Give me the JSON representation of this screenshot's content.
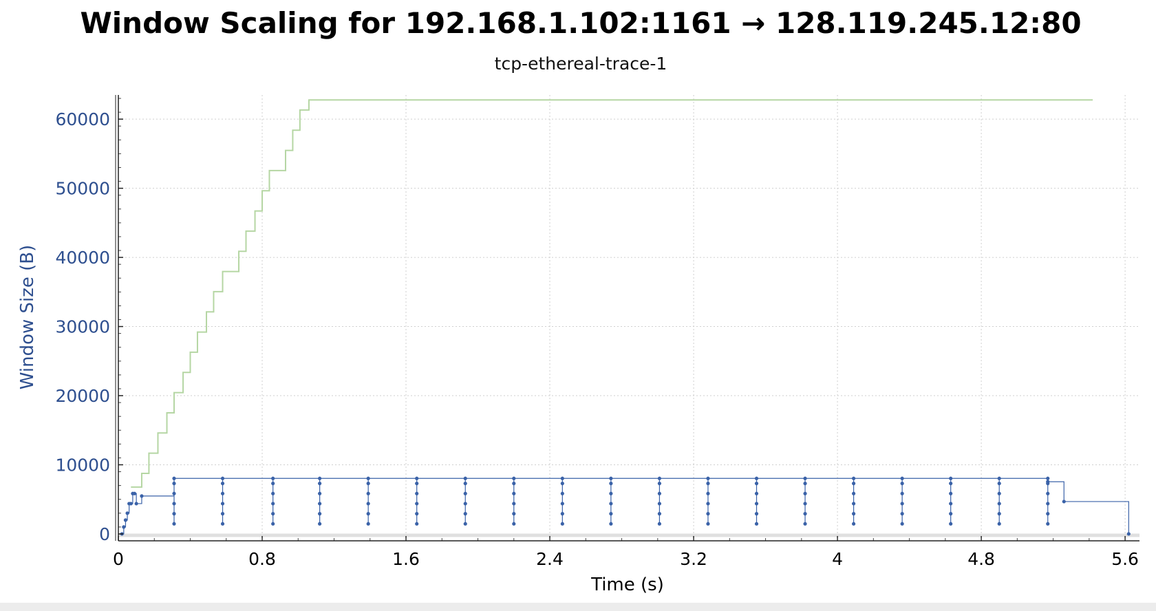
{
  "chart_data": {
    "type": "line",
    "title": "Window Scaling for 192.168.1.102:1161 → 128.119.245.12:80",
    "subtitle": "tcp-ethereal-trace-1",
    "xlabel": "Time (s)",
    "ylabel": "Window Size (B)",
    "xlim": [
      0,
      5.68
    ],
    "ylim": [
      -1000,
      63500
    ],
    "x_ticks": [
      "0",
      "0.8",
      "1.6",
      "2.4",
      "3.2",
      "4",
      "4.8",
      "5.6"
    ],
    "y_ticks": [
      "0",
      "10000",
      "20000",
      "30000",
      "40000",
      "50000",
      "60000"
    ],
    "grid": true,
    "colors": {
      "receive_window": "#b5d6a3",
      "bytes_in_flight": "#3a62a8",
      "axis_labels": "#2e4f8f"
    },
    "series": [
      {
        "style": "step",
        "x": [
          0.07,
          0.13,
          0.17,
          0.22,
          0.27,
          0.31,
          0.36,
          0.4,
          0.44,
          0.49,
          0.53,
          0.58,
          0.62,
          0.67,
          0.71,
          0.76,
          0.8,
          0.84,
          0.89,
          0.93,
          0.97,
          1.01,
          1.06,
          5.42
        ],
        "y": [
          6780,
          8760,
          11680,
          14600,
          17520,
          20440,
          23360,
          26280,
          29200,
          32120,
          35040,
          37960,
          37960,
          40880,
          43800,
          46720,
          49640,
          52560,
          52560,
          55480,
          58400,
          61320,
          62780,
          62780
        ]
      },
      {
        "style": "step-with-markers",
        "x": [
          0.02,
          0.03,
          0.04,
          0.05,
          0.06,
          0.07,
          0.08,
          0.09,
          0.1,
          0.13,
          0.31,
          0.31,
          0.31,
          0.31,
          0.31,
          0.31,
          0.58,
          0.58,
          0.58,
          0.58,
          0.58,
          0.58,
          0.86,
          0.86,
          0.86,
          0.86,
          0.86,
          0.86,
          1.12,
          1.12,
          1.12,
          1.12,
          1.12,
          1.12,
          1.39,
          1.39,
          1.39,
          1.39,
          1.39,
          1.39,
          1.66,
          1.66,
          1.66,
          1.66,
          1.66,
          1.66,
          1.93,
          1.93,
          1.93,
          1.93,
          1.93,
          1.93,
          2.2,
          2.2,
          2.2,
          2.2,
          2.2,
          2.2,
          2.47,
          2.47,
          2.47,
          2.47,
          2.47,
          2.47,
          2.74,
          2.74,
          2.74,
          2.74,
          2.74,
          2.74,
          3.01,
          3.01,
          3.01,
          3.01,
          3.01,
          3.01,
          3.28,
          3.28,
          3.28,
          3.28,
          3.28,
          3.28,
          3.55,
          3.55,
          3.55,
          3.55,
          3.55,
          3.55,
          3.82,
          3.82,
          3.82,
          3.82,
          3.82,
          3.82,
          4.09,
          4.09,
          4.09,
          4.09,
          4.09,
          4.09,
          4.36,
          4.36,
          4.36,
          4.36,
          4.36,
          4.36,
          4.63,
          4.63,
          4.63,
          4.63,
          4.63,
          4.63,
          4.9,
          4.9,
          4.9,
          4.9,
          4.9,
          4.9,
          5.17,
          5.17,
          5.17,
          5.17,
          5.17,
          5.17,
          5.17,
          5.26,
          5.62
        ],
        "y": [
          0,
          1000,
          2000,
          3000,
          4380,
          4380,
          5840,
          5840,
          4380,
          5480,
          1460,
          2920,
          4380,
          5840,
          7300,
          8030,
          1460,
          2920,
          4380,
          5840,
          7300,
          8030,
          1460,
          2920,
          4380,
          5840,
          7300,
          8030,
          1460,
          2920,
          4380,
          5840,
          7300,
          8030,
          1460,
          2920,
          4380,
          5840,
          7300,
          8030,
          1460,
          2920,
          4380,
          5840,
          7300,
          8030,
          1460,
          2920,
          4380,
          5840,
          7300,
          8030,
          1460,
          2920,
          4380,
          5840,
          7300,
          8030,
          1460,
          2920,
          4380,
          5840,
          7300,
          8030,
          1460,
          2920,
          4380,
          5840,
          7300,
          8030,
          1460,
          2920,
          4380,
          5840,
          7300,
          8030,
          1460,
          2920,
          4380,
          5840,
          7300,
          8030,
          1460,
          2920,
          4380,
          5840,
          7300,
          8030,
          1460,
          2920,
          4380,
          5840,
          7300,
          8030,
          1460,
          2920,
          4380,
          5840,
          7300,
          8030,
          1460,
          2920,
          4380,
          5840,
          7300,
          8030,
          1460,
          2920,
          4380,
          5840,
          7300,
          8030,
          1460,
          2920,
          4380,
          5840,
          7300,
          8030,
          1460,
          2920,
          4380,
          5840,
          7300,
          8030,
          7550,
          4680,
          0
        ]
      }
    ]
  }
}
